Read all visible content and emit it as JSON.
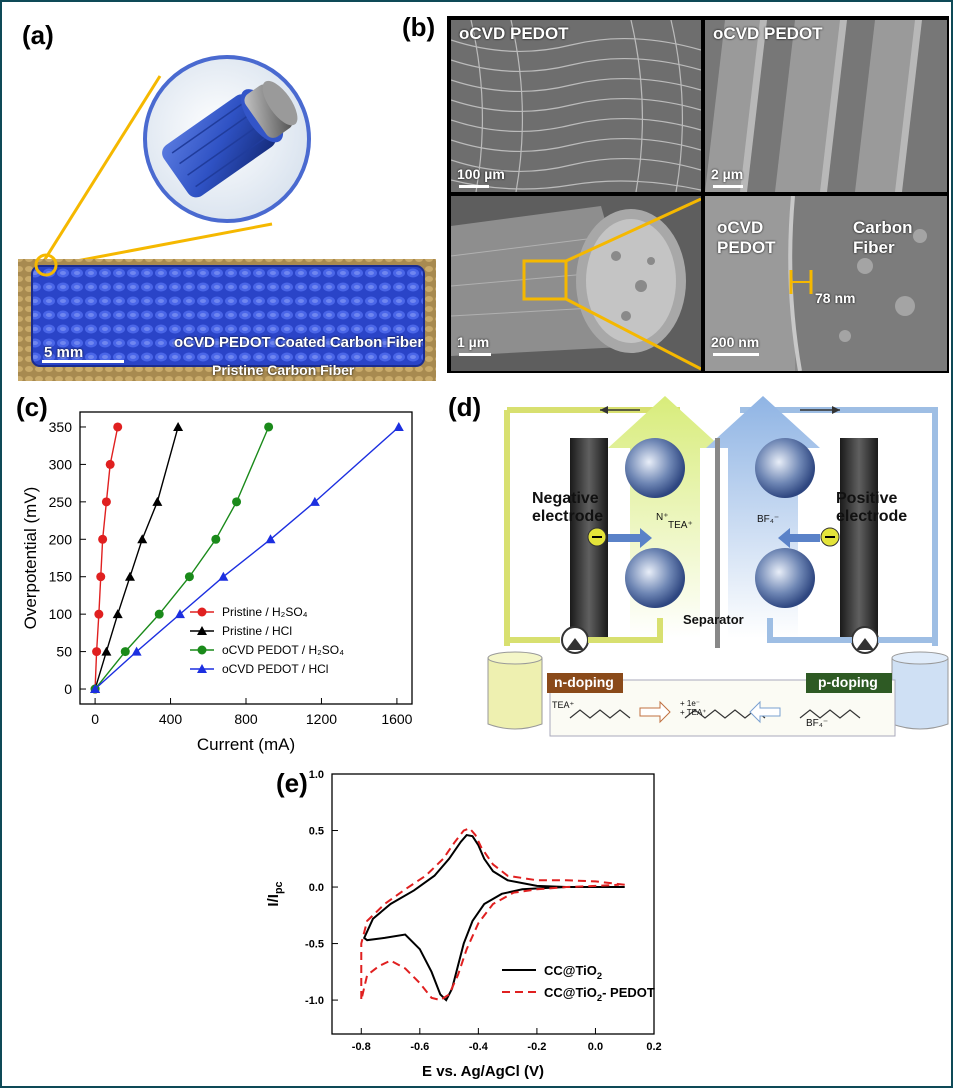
{
  "panels": {
    "a": {
      "label": "(a)",
      "coated_label": "oCVD PEDOT Coated Carbon Fiber",
      "pristine_label": "Pristine Carbon Fiber",
      "scale": "5 mm"
    },
    "b": {
      "label": "(b)",
      "tl_title": "oCVD PEDOT",
      "tl_scale": "100 µm",
      "tr_title": "oCVD PEDOT",
      "tr_scale": "2 µm",
      "bl_scale": "1 µm",
      "br_left": "oCVD\nPEDOT",
      "br_right": "Carbon\nFiber",
      "br_thickness": "78 nm",
      "br_scale": "200 nm"
    },
    "c": {
      "label": "(c)"
    },
    "d": {
      "label": "(d)",
      "negative": "Negative\nelectrode",
      "positive": "Positive\nelectrode",
      "separator": "Separator",
      "n_doping": "n-doping",
      "p_doping": "p-doping",
      "tea": "TEA⁺",
      "bf4": "BF₄⁻",
      "n_plus": "N⁺",
      "e_plus": "+ 1e⁻\n+ TEA⁺"
    },
    "e": {
      "label": "(e)"
    }
  },
  "colors": {
    "frame": "#0e4a57",
    "gold": "#f5b800",
    "pristine_h2so4": "#e02020",
    "pristine_hcl": "#000000",
    "pedot_h2so4": "#1a8a1a",
    "pedot_hcl": "#1c2fe0",
    "cv_tio2": "#000000",
    "cv_pedot": "#e02020"
  },
  "chart_data": [
    {
      "type": "line",
      "panel": "c",
      "xlabel": "Current (mA)",
      "ylabel": "Overpotential (mV)",
      "xlim": [
        -80,
        1680
      ],
      "ylim": [
        -20,
        370
      ],
      "xticks": [
        0,
        400,
        800,
        1200,
        1600
      ],
      "yticks": [
        0,
        50,
        100,
        150,
        200,
        250,
        300,
        350
      ],
      "legend_position": "bottom-right",
      "series": [
        {
          "name": "Pristine / H₂SO₄",
          "marker": "circle",
          "color": "#e02020",
          "x": [
            0,
            8,
            20,
            30,
            40,
            60,
            80,
            120
          ],
          "y": [
            0,
            50,
            100,
            150,
            200,
            250,
            300,
            350
          ]
        },
        {
          "name": "Pristine / HCl",
          "marker": "triangle",
          "color": "#000000",
          "x": [
            0,
            60,
            120,
            185,
            250,
            330,
            440
          ],
          "y": [
            0,
            50,
            100,
            150,
            200,
            250,
            350
          ]
        },
        {
          "name": "oCVD PEDOT / H₂SO₄",
          "marker": "circle",
          "color": "#1a8a1a",
          "x": [
            0,
            160,
            340,
            500,
            640,
            750,
            920
          ],
          "y": [
            0,
            50,
            100,
            150,
            200,
            250,
            350
          ]
        },
        {
          "name": "oCVD PEDOT / HCl",
          "marker": "triangle",
          "color": "#1c2fe0",
          "x": [
            0,
            220,
            450,
            680,
            930,
            1165,
            1610
          ],
          "y": [
            0,
            50,
            100,
            150,
            200,
            250,
            350
          ]
        }
      ]
    },
    {
      "type": "line",
      "panel": "e",
      "xlabel": "E vs. Ag/AgCl (V)",
      "ylabel": "I/I_pc",
      "ylabel_main": "I/I",
      "ylabel_sub": "pc",
      "xlim": [
        -0.9,
        0.2
      ],
      "ylim": [
        -1.3,
        1.0
      ],
      "xticks": [
        -0.8,
        -0.6,
        -0.4,
        -0.2,
        0.0,
        0.2
      ],
      "xtick_labels": [
        "-0.8",
        "-0.6",
        "-0.4",
        "-0.2",
        "0.0",
        "0.2"
      ],
      "yticks": [
        -1.0,
        -0.5,
        0.0,
        0.5,
        1.0
      ],
      "ytick_labels": [
        "-1.0",
        "-0.5",
        "0.0",
        "0.5",
        "1.0"
      ],
      "legend_position": "bottom-right",
      "series": [
        {
          "name": "CC@TiO₂",
          "legend_main": "CC@TiO",
          "legend_sub": "2",
          "legend_tail": "",
          "style": "solid",
          "color": "#000000",
          "x": [
            0.1,
            0.0,
            -0.1,
            -0.2,
            -0.3,
            -0.35,
            -0.38,
            -0.4,
            -0.42,
            -0.44,
            -0.46,
            -0.5,
            -0.55,
            -0.62,
            -0.7,
            -0.76,
            -0.79,
            -0.78,
            -0.72,
            -0.65,
            -0.6,
            -0.56,
            -0.53,
            -0.51,
            -0.49,
            -0.47,
            -0.45,
            -0.42,
            -0.38,
            -0.32,
            -0.25,
            -0.18,
            -0.1,
            0.0,
            0.1
          ],
          "y": [
            0.0,
            0.0,
            0.0,
            0.01,
            0.06,
            0.14,
            0.25,
            0.37,
            0.45,
            0.46,
            0.4,
            0.25,
            0.1,
            -0.03,
            -0.15,
            -0.28,
            -0.45,
            -0.47,
            -0.45,
            -0.42,
            -0.55,
            -0.75,
            -0.95,
            -1.0,
            -0.9,
            -0.7,
            -0.5,
            -0.3,
            -0.15,
            -0.06,
            -0.02,
            -0.01,
            0.0,
            0.0,
            0.0
          ]
        },
        {
          "name": "CC@TiO₂- PEDOT",
          "legend_main": "CC@TiO",
          "legend_sub": "2",
          "legend_tail": "- PEDOT",
          "style": "dashed",
          "color": "#e02020",
          "x": [
            0.1,
            0.0,
            -0.1,
            -0.2,
            -0.3,
            -0.35,
            -0.39,
            -0.41,
            -0.43,
            -0.45,
            -0.48,
            -0.52,
            -0.58,
            -0.65,
            -0.72,
            -0.78,
            -0.8,
            -0.8,
            -0.78,
            -0.74,
            -0.7,
            -0.65,
            -0.6,
            -0.56,
            -0.53,
            -0.5,
            -0.47,
            -0.44,
            -0.4,
            -0.35,
            -0.28,
            -0.2,
            -0.1,
            0.0,
            0.08
          ],
          "y": [
            0.02,
            0.05,
            0.06,
            0.06,
            0.1,
            0.2,
            0.35,
            0.46,
            0.52,
            0.5,
            0.4,
            0.25,
            0.1,
            -0.02,
            -0.15,
            -0.3,
            -0.5,
            -1.0,
            -0.78,
            -0.7,
            -0.65,
            -0.72,
            -0.85,
            -0.98,
            -1.0,
            -0.95,
            -0.78,
            -0.55,
            -0.32,
            -0.15,
            -0.05,
            -0.02,
            0.0,
            0.01,
            0.02
          ]
        }
      ]
    }
  ]
}
